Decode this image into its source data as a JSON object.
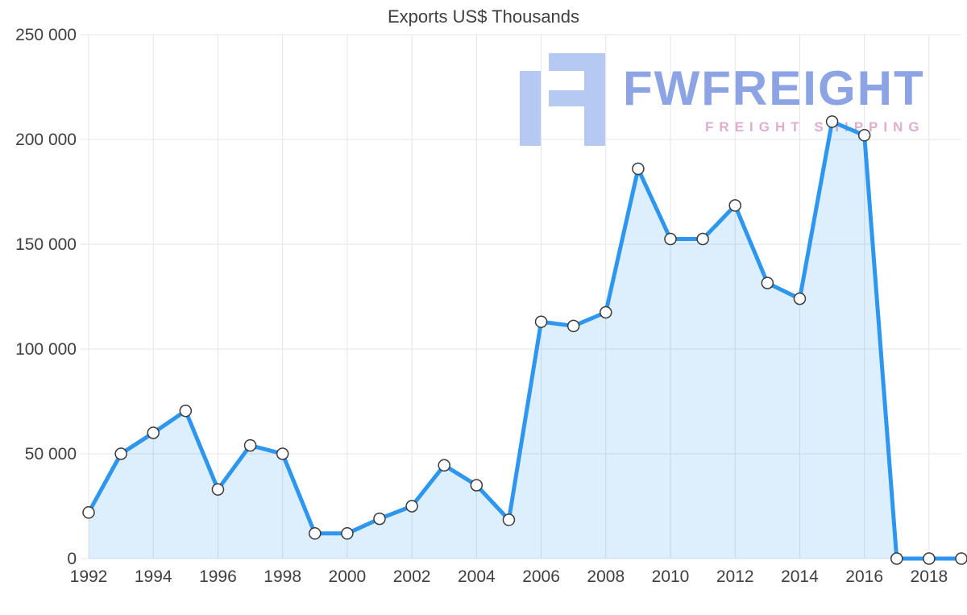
{
  "watermark": {
    "brand": "FWFREIGHT",
    "tagline": "FREIGHT SHIPPING"
  },
  "chart_data": {
    "type": "area",
    "title": "Exports US$ Thousands",
    "x": [
      1992,
      1993,
      1994,
      1995,
      1996,
      1997,
      1998,
      1999,
      2000,
      2001,
      2002,
      2003,
      2004,
      2005,
      2006,
      2007,
      2008,
      2009,
      2010,
      2011,
      2012,
      2013,
      2014,
      2015,
      2016,
      2017,
      2018,
      2019
    ],
    "values": [
      22000,
      50000,
      60000,
      70500,
      33000,
      54000,
      50000,
      12000,
      12000,
      19000,
      25000,
      44500,
      35000,
      18500,
      113000,
      111000,
      117500,
      186000,
      152500,
      152500,
      168500,
      131500,
      124000,
      208500,
      202000,
      0,
      0,
      0
    ],
    "x_ticks": [
      1992,
      1994,
      1996,
      1998,
      2000,
      2002,
      2004,
      2006,
      2008,
      2010,
      2012,
      2014,
      2016,
      2018
    ],
    "x_tick_labels": [
      "1992",
      "1994",
      "1996",
      "1998",
      "2000",
      "2002",
      "2004",
      "2006",
      "2008",
      "2010",
      "2012",
      "2014",
      "2016",
      "2018"
    ],
    "y_ticks": [
      0,
      50000,
      100000,
      150000,
      200000,
      250000
    ],
    "y_tick_labels": [
      "0",
      "50 000",
      "100 000",
      "150 000",
      "200 000",
      "250 000"
    ],
    "ylim": [
      0,
      250000
    ],
    "xlabel": "",
    "ylabel": "",
    "grid": true,
    "legend": "none",
    "colors": {
      "line": "#2D96EE",
      "area": "rgba(45,150,238,0.16)",
      "marker_fill": "#FFFFFF",
      "marker_stroke": "#3A3A3A",
      "grid": "#E4E4E4",
      "tick_text": "#3F3F3F",
      "title_text": "#3F3F3F",
      "watermark_brand": "#8CA4E4",
      "watermark_tagline": "#DFAECF",
      "watermark_logo": "#B6C9F2"
    }
  }
}
